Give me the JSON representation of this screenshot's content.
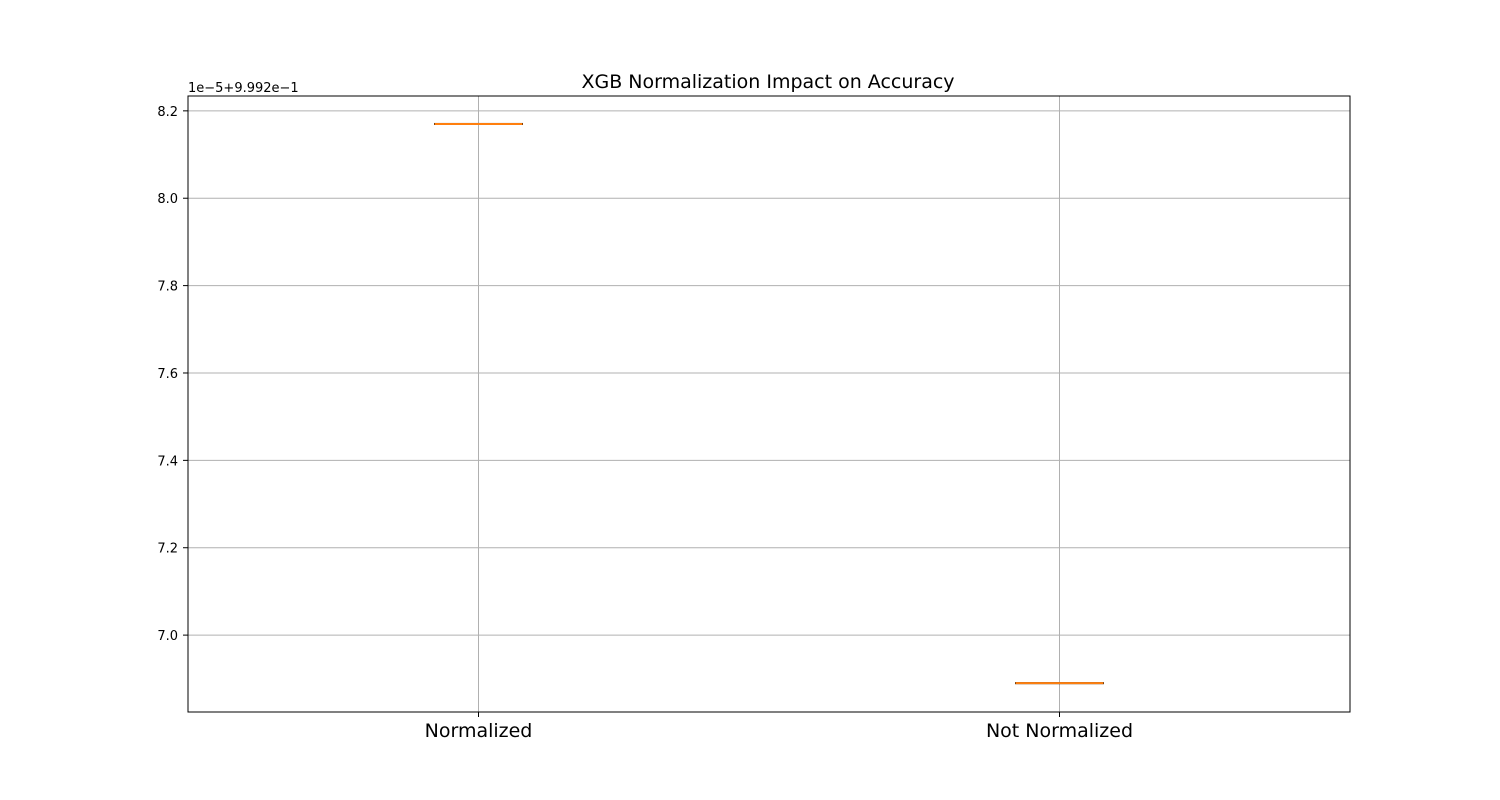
{
  "chart_data": {
    "type": "box",
    "title": "XGB Normalization Impact on Accuracy",
    "xlabel": "",
    "ylabel": "",
    "y_offset_label": "1e−5+9.992e−1",
    "categories": [
      "Normalized",
      "Not Normalized"
    ],
    "y_tick_labels": [
      "7.0",
      "7.2",
      "7.4",
      "7.6",
      "7.8",
      "8.0",
      "8.2"
    ],
    "ylim": [
      6.824,
      8.234
    ],
    "grid": true,
    "series": [
      {
        "values": [
          8.17,
          6.89
        ]
      }
    ],
    "colors": {
      "median": "#ff7f0e",
      "box": "#000000",
      "grid": "#b0b0b0",
      "axes": "#000000"
    }
  }
}
